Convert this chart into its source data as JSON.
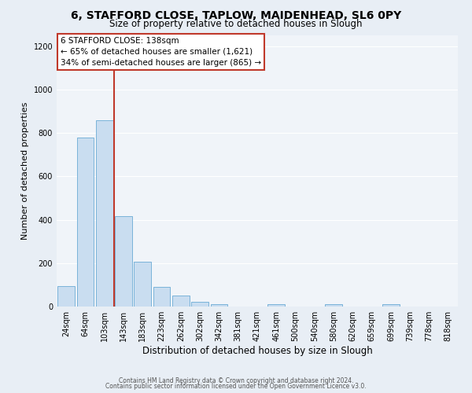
{
  "title1": "6, STAFFORD CLOSE, TAPLOW, MAIDENHEAD, SL6 0PY",
  "title2": "Size of property relative to detached houses in Slough",
  "xlabel": "Distribution of detached houses by size in Slough",
  "ylabel": "Number of detached properties",
  "categories": [
    "24sqm",
    "64sqm",
    "103sqm",
    "143sqm",
    "183sqm",
    "223sqm",
    "262sqm",
    "302sqm",
    "342sqm",
    "381sqm",
    "421sqm",
    "461sqm",
    "500sqm",
    "540sqm",
    "580sqm",
    "620sqm",
    "659sqm",
    "699sqm",
    "739sqm",
    "778sqm",
    "818sqm"
  ],
  "values": [
    95,
    780,
    860,
    415,
    205,
    90,
    52,
    20,
    12,
    0,
    0,
    10,
    0,
    0,
    10,
    0,
    0,
    10,
    0,
    0,
    0
  ],
  "bar_color": "#c9ddf0",
  "bar_edge_color": "#6aaad4",
  "vline_color": "#c0392b",
  "annotation_line1": "6 STAFFORD CLOSE: 138sqm",
  "annotation_line2": "← 65% of detached houses are smaller (1,621)",
  "annotation_line3": "34% of semi-detached houses are larger (865) →",
  "box_edge_color": "#c0392b",
  "ylim": [
    0,
    1250
  ],
  "yticks": [
    0,
    200,
    400,
    600,
    800,
    1000,
    1200
  ],
  "footer1": "Contains HM Land Registry data © Crown copyright and database right 2024.",
  "footer2": "Contains public sector information licensed under the Open Government Licence v3.0.",
  "bg_color": "#e8eef5",
  "plot_bg_color": "#f0f4f9",
  "grid_color": "#ffffff",
  "title1_fontsize": 10,
  "title2_fontsize": 8.5,
  "ylabel_fontsize": 8,
  "xlabel_fontsize": 8.5,
  "tick_fontsize": 7,
  "ann_fontsize": 7.5,
  "footer_fontsize": 5.5
}
